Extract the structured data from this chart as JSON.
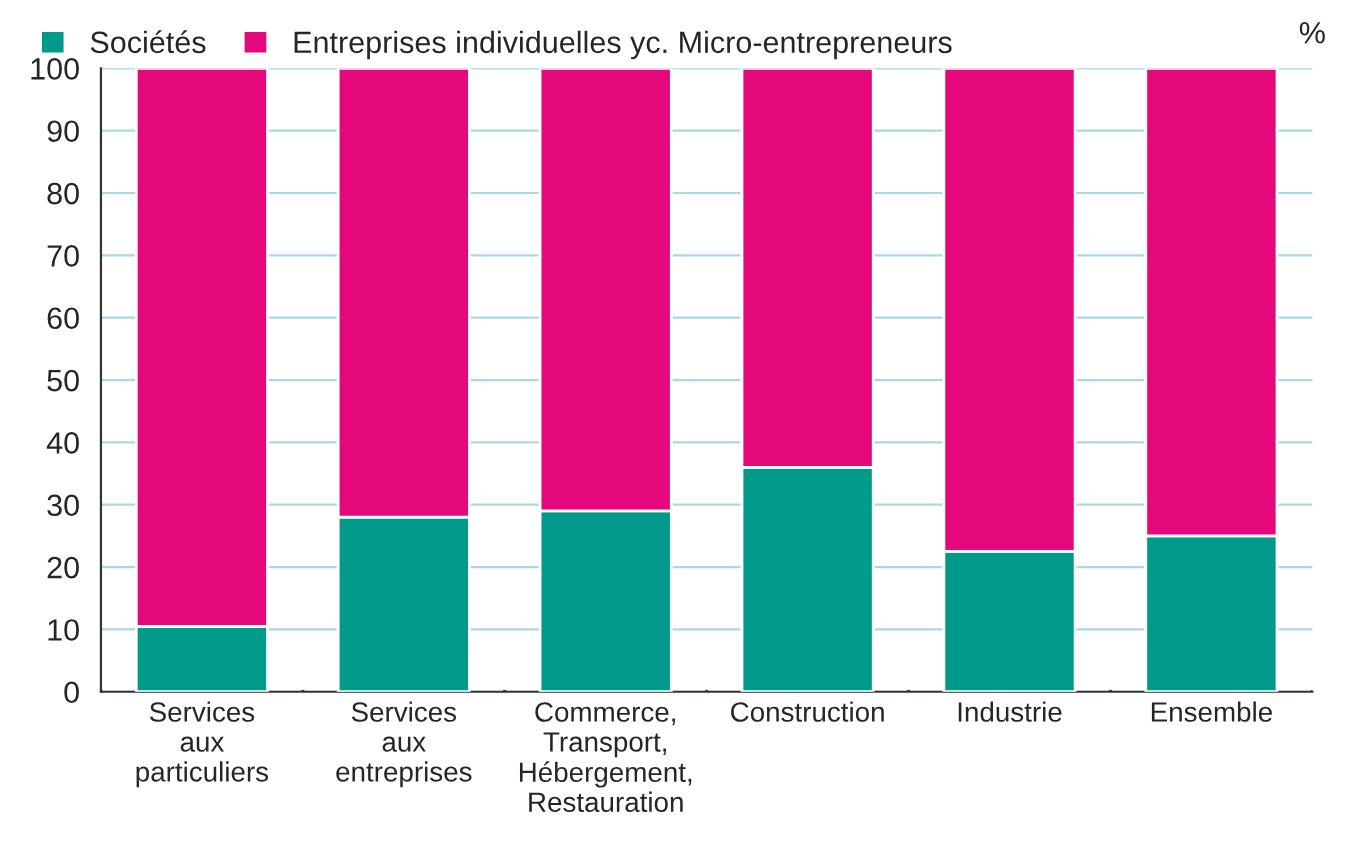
{
  "chart_data": {
    "type": "bar",
    "stacked": true,
    "ylabel": "%",
    "categories": [
      "Services\naux\nparticuliers",
      "Services\naux\nentreprises",
      "Commerce,\nTransport,\nHébergement,\nRestauration",
      "Construction",
      "Industrie",
      "Ensemble"
    ],
    "series": [
      {
        "name": "Sociétés",
        "color": "#009a8a",
        "values": [
          10.5,
          28,
          29,
          36,
          22.5,
          25
        ]
      },
      {
        "name": "Entreprises individuelles yc. Micro-entrepreneurs",
        "color": "#e4087a",
        "values": [
          89.5,
          72,
          71,
          64,
          77.5,
          75
        ]
      }
    ],
    "ylim": [
      0,
      100
    ],
    "yticks": [
      0,
      10,
      20,
      30,
      40,
      50,
      60,
      70,
      80,
      90,
      100
    ],
    "grid": "y",
    "legend": "top left"
  }
}
